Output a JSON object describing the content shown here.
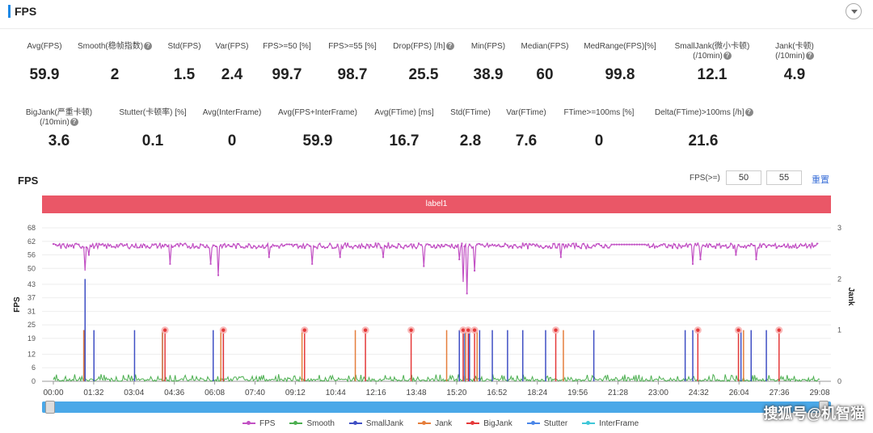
{
  "header": {
    "title": "FPS"
  },
  "metrics_row1": [
    {
      "label": "Avg(FPS)",
      "value": "59.9",
      "help": false
    },
    {
      "label": "Smooth(稳帧指数)",
      "value": "2",
      "help": true
    },
    {
      "label": "Std(FPS)",
      "value": "1.5",
      "help": false
    },
    {
      "label": "Var(FPS)",
      "value": "2.4",
      "help": false
    },
    {
      "label": "FPS>=50 [%]",
      "value": "99.7",
      "help": false
    },
    {
      "label": "FPS>=55 [%]",
      "value": "98.7",
      "help": false
    },
    {
      "label": "Drop(FPS) [/h]",
      "value": "25.5",
      "help": true
    },
    {
      "label": "Min(FPS)",
      "value": "38.9",
      "help": false
    },
    {
      "label": "Median(FPS)",
      "value": "60",
      "help": false
    },
    {
      "label": "MedRange(FPS)[%]",
      "value": "99.8",
      "help": false
    },
    {
      "label": "SmallJank(微小卡顿)",
      "label2": "(/10min)",
      "value": "12.1",
      "help": true
    },
    {
      "label": "Jank(卡顿)",
      "label2": "(/10min)",
      "value": "4.9",
      "help": true
    }
  ],
  "metrics_row2": [
    {
      "label": "BigJank(严重卡顿)",
      "label2": "(/10min)",
      "value": "3.6",
      "help": true
    },
    {
      "label": "Stutter(卡顿率) [%]",
      "value": "0.1",
      "help": false
    },
    {
      "label": "Avg(InterFrame)",
      "value": "0",
      "help": false
    },
    {
      "label": "Avg(FPS+InterFrame)",
      "value": "59.9",
      "help": false
    },
    {
      "label": "Avg(FTime) [ms]",
      "value": "16.7",
      "help": false
    },
    {
      "label": "Std(FTime)",
      "value": "2.8",
      "help": false
    },
    {
      "label": "Var(FTime)",
      "value": "7.6",
      "help": false
    },
    {
      "label": "FTime>=100ms [%]",
      "value": "0",
      "help": false
    },
    {
      "label": "Delta(FTime)>100ms [/h]",
      "value": "21.6",
      "help": true
    }
  ],
  "chart_header": {
    "title": "FPS",
    "threshold_label": "FPS(>=)",
    "threshold_1": "50",
    "threshold_2": "55",
    "reset_label": "重置"
  },
  "label_band": "label1",
  "watermark": "搜狐号@机智猫",
  "chart_data": {
    "type": "line",
    "title": "",
    "ylabel": "FPS",
    "y2label": "Jank",
    "ylim": [
      0,
      68
    ],
    "y2lim": [
      0,
      3
    ],
    "yticks": [
      0,
      6,
      12,
      19,
      25,
      31,
      37,
      43,
      50,
      56,
      62,
      68
    ],
    "y2ticks": [
      0,
      1,
      2,
      3
    ],
    "xticks": [
      "00:00",
      "01:32",
      "03:04",
      "04:36",
      "06:08",
      "07:40",
      "09:12",
      "10:44",
      "12:16",
      "13:48",
      "15:20",
      "16:52",
      "18:24",
      "19:56",
      "21:28",
      "23:00",
      "24:32",
      "26:04",
      "27:36",
      "29:08"
    ],
    "x_range_min": [
      0,
      30.2
    ],
    "fps_baseline": 60,
    "fps_dips": [
      {
        "t": 1.25,
        "v": 49
      },
      {
        "t": 1.4,
        "v": 56
      },
      {
        "t": 4.6,
        "v": 52
      },
      {
        "t": 6.2,
        "v": 52
      },
      {
        "t": 6.5,
        "v": 47
      },
      {
        "t": 8.5,
        "v": 55
      },
      {
        "t": 10.2,
        "v": 52
      },
      {
        "t": 11.3,
        "v": 55
      },
      {
        "t": 13.0,
        "v": 55
      },
      {
        "t": 14.6,
        "v": 51
      },
      {
        "t": 16.0,
        "v": 54
      },
      {
        "t": 16.15,
        "v": 44
      },
      {
        "t": 16.3,
        "v": 38.9
      },
      {
        "t": 16.6,
        "v": 49
      },
      {
        "t": 20.0,
        "v": 55
      },
      {
        "t": 25.2,
        "v": 52
      },
      {
        "t": 25.5,
        "v": 54
      },
      {
        "t": 26.9,
        "v": 56
      },
      {
        "t": 27.7,
        "v": 54
      }
    ],
    "small_jank": [
      1.2,
      1.6,
      3.2,
      4.3,
      6.3,
      6.7,
      16.0,
      16.4,
      16.8,
      17.3,
      17.9,
      18.5,
      19.4,
      21.3,
      24.9,
      25.2,
      27.1,
      27.5,
      28.1
    ],
    "jank": [
      1.2,
      4.3,
      6.6,
      9.8,
      11.9,
      15.5,
      16.25,
      16.7,
      20.1,
      27.2
    ],
    "big_jank": [
      4.4,
      6.7,
      9.9,
      12.3,
      14.1,
      16.15,
      16.35,
      16.6,
      19.8,
      25.4,
      27.0,
      28.6
    ],
    "stutter": [
      16.2
    ],
    "series": [
      {
        "name": "FPS",
        "color": "#c251c4"
      },
      {
        "name": "Smooth",
        "color": "#4caf50"
      },
      {
        "name": "SmallJank",
        "color": "#3f4fc4"
      },
      {
        "name": "Jank",
        "color": "#e57e3c"
      },
      {
        "name": "BigJank",
        "color": "#e53939"
      },
      {
        "name": "Stutter",
        "color": "#4a86e8"
      },
      {
        "name": "InterFrame",
        "color": "#3fc7d8"
      }
    ]
  }
}
